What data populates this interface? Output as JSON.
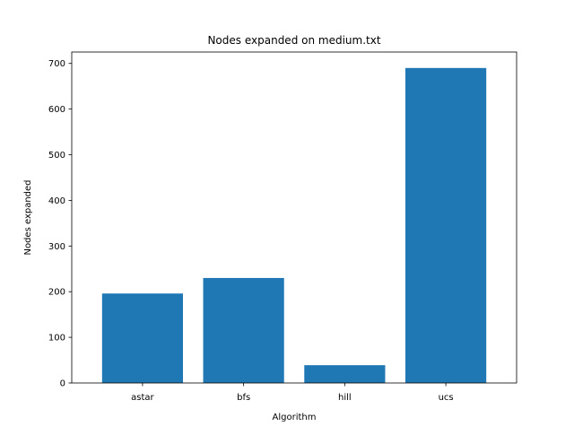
{
  "chart_data": {
    "type": "bar",
    "title": "Nodes expanded on medium.txt",
    "xlabel": "Algorithm",
    "ylabel": "Nodes expanded",
    "categories": [
      "astar",
      "bfs",
      "hill",
      "ucs"
    ],
    "values": [
      196,
      230,
      39,
      690
    ],
    "ylim": [
      0,
      725
    ],
    "yticks": [
      0,
      100,
      200,
      300,
      400,
      500,
      600,
      700
    ],
    "grid": false,
    "bar_color": "#1f77b4"
  }
}
